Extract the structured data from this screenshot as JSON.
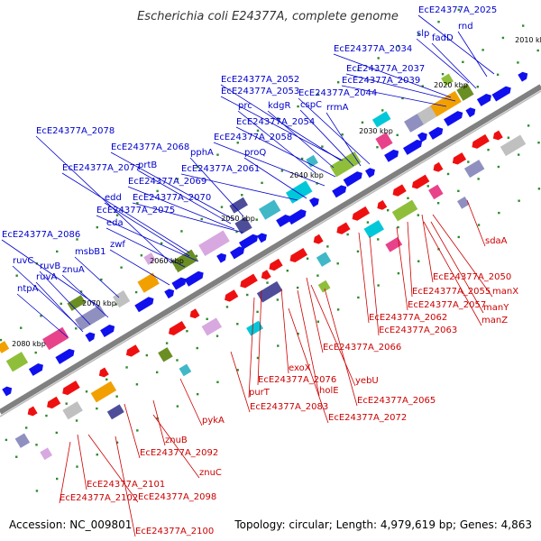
{
  "title": "Escherichia coli E24377A, complete genome",
  "accession": "Accession: NC_009801",
  "summary": "Topology: circular; Length: 4,979,619 bp; Genes: 4,863",
  "colors": {
    "forward_label": "#0000cc",
    "reverse_label": "#cc0000",
    "forward_gene": "#1010ee",
    "reverse_gene": "#ee1010",
    "backbone": "#808080",
    "tick": "#2e8b2e"
  },
  "scale_labels": [
    {
      "text": "2010 kbp"
    },
    {
      "text": "2020 kbp"
    },
    {
      "text": "2030 kbp"
    },
    {
      "text": "2040 kbp"
    },
    {
      "text": "2050 kbp"
    },
    {
      "text": "2060 kbp"
    },
    {
      "text": "2070 kbp"
    },
    {
      "text": "2080 kbp"
    }
  ],
  "forward_genes": [
    {
      "label": "EcE24377A_2025"
    },
    {
      "label": "slp"
    },
    {
      "label": "rnd"
    },
    {
      "label": "fadD"
    },
    {
      "label": "EcE24377A_2034"
    },
    {
      "label": "EcE24377A_2037"
    },
    {
      "label": "EcE24377A_2039"
    },
    {
      "label": "EcE24377A_2052"
    },
    {
      "label": "EcE24377A_2053"
    },
    {
      "label": "EcE24377A_2044"
    },
    {
      "label": "prc"
    },
    {
      "label": "kdgR"
    },
    {
      "label": "cspC"
    },
    {
      "label": "rrmA"
    },
    {
      "label": "EcE24377A_2054"
    },
    {
      "label": "EcE24377A_2078"
    },
    {
      "label": "EcE24377A_2058"
    },
    {
      "label": "EcE24377A_2068"
    },
    {
      "label": "pphA"
    },
    {
      "label": "proQ"
    },
    {
      "label": "EcE24377A_2077"
    },
    {
      "label": "prtB"
    },
    {
      "label": "EcE24377A_2061"
    },
    {
      "label": "EcE24377A_2069"
    },
    {
      "label": "edd"
    },
    {
      "label": "EcE24377A_2070"
    },
    {
      "label": "EcE24377A_2075"
    },
    {
      "label": "eda"
    },
    {
      "label": "EcE24377A_2086"
    },
    {
      "label": "zwf"
    },
    {
      "label": "msbB1"
    },
    {
      "label": "ruvC"
    },
    {
      "label": "ruvB"
    },
    {
      "label": "znuA"
    },
    {
      "label": "ruvA"
    },
    {
      "label": "ntpA"
    }
  ],
  "reverse_genes": [
    {
      "label": "sdaA"
    },
    {
      "label": "EcE24377A_2050"
    },
    {
      "label": "manX"
    },
    {
      "label": "EcE24377A_2055"
    },
    {
      "label": "EcE24377A_2057"
    },
    {
      "label": "manY"
    },
    {
      "label": "manZ"
    },
    {
      "label": "EcE24377A_2062"
    },
    {
      "label": "EcE24377A_2063"
    },
    {
      "label": "EcE24377A_2066"
    },
    {
      "label": "exoX"
    },
    {
      "label": "EcE24377A_2076"
    },
    {
      "label": "yebU"
    },
    {
      "label": "purT"
    },
    {
      "label": "holE"
    },
    {
      "label": "EcE24377A_2065"
    },
    {
      "label": "EcE24377A_2083"
    },
    {
      "label": "EcE24377A_2072"
    },
    {
      "label": "pykA"
    },
    {
      "label": "znuB"
    },
    {
      "label": "EcE24377A_2092"
    },
    {
      "label": "znuC"
    },
    {
      "label": "EcE24377A_2101"
    },
    {
      "label": "EcE24377A_2098"
    },
    {
      "label": "EcE24377A_2102"
    },
    {
      "label": "EcE24377A_2100"
    }
  ]
}
